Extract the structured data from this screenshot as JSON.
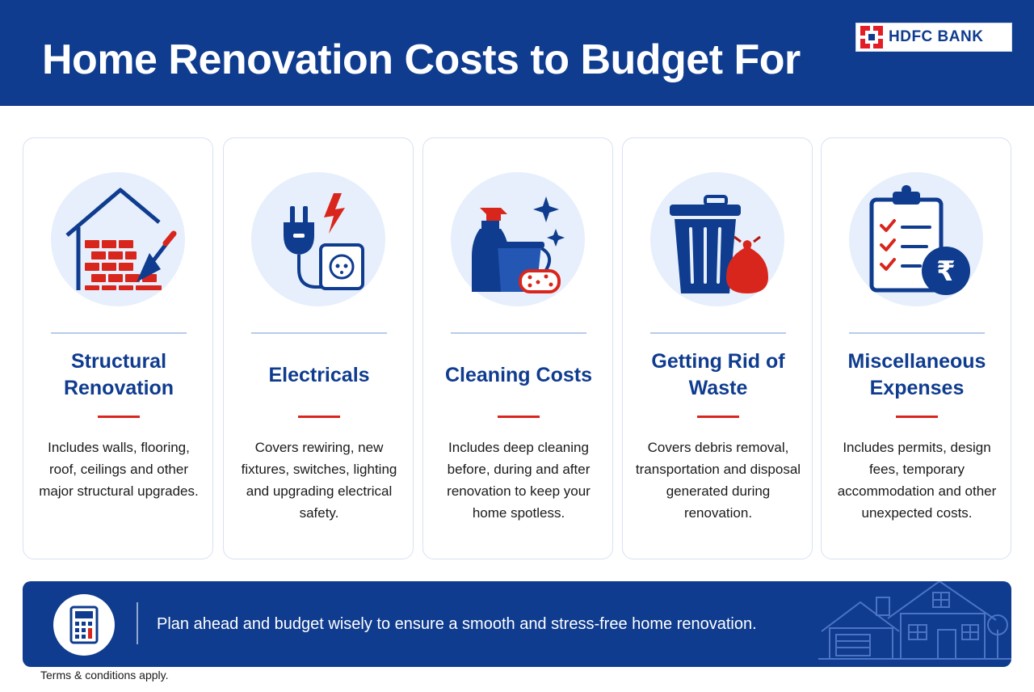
{
  "header": {
    "title": "Home Renovation Costs to Budget For",
    "logo_text": "HDFC BANK"
  },
  "cards": [
    {
      "title": "Structural Renovation",
      "description": "Includes walls, flooring, roof, ceilings and other major structural upgrades.",
      "icon": "house-bricks-trowel-icon"
    },
    {
      "title": "Electricals",
      "description": "Covers rewiring, new fixtures, switches, lighting and upgrading electrical safety.",
      "icon": "plug-socket-icon"
    },
    {
      "title": "Cleaning Costs",
      "description": "Includes deep cleaning before, during and after renovation to keep your home spotless.",
      "icon": "spray-bucket-sponge-icon"
    },
    {
      "title": "Getting Rid of Waste",
      "description": "Covers debris removal, transportation and disposal generated during renovation.",
      "icon": "trash-bin-bag-icon"
    },
    {
      "title": "Miscellaneous Expenses",
      "description": "Includes permits, design fees, temporary accommodation and other unexpected costs.",
      "icon": "checklist-rupee-icon"
    }
  ],
  "banner": {
    "text": "Plan ahead and budget wisely to ensure a smooth and stress-free home renovation.",
    "icon": "calculator-icon"
  },
  "footer": {
    "terms": "Terms & conditions apply."
  },
  "colors": {
    "brand_blue": "#0f3c8f",
    "accent_red": "#d9261c",
    "icon_bg": "#e6effb"
  }
}
